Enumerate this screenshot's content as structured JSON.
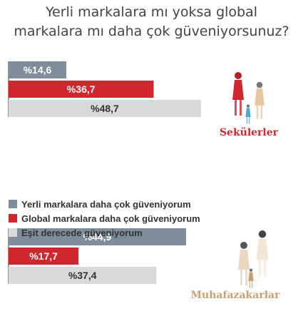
{
  "title_lines": [
    "Yerli markalara mı yoksa global",
    "markalara mı daha çok güveniyorsunuz?"
  ],
  "colors": {
    "yerli": "#7f8c99",
    "global": "#d0272e",
    "esit": "#d9d9d9",
    "text": "#333333",
    "caption": "#d0272e",
    "caption_muted": "#c8a070"
  },
  "chart_data": [
    {
      "type": "bar",
      "group": "Sekülerler",
      "categories": [
        "Yerli markalara daha çok güveniyorum",
        "Global markalara daha çok güveniyorum",
        "Eşit derecede güveniyorum"
      ],
      "values": [
        14.6,
        36.7,
        48.7
      ],
      "labels": [
        "%14,6",
        "%36,7",
        "%48,7"
      ],
      "icon": "secular-family-icon"
    },
    {
      "type": "bar",
      "group": "Muhafazakarlar",
      "categories": [
        "Yerli markalara daha çok güveniyorum",
        "Global markalara daha çok güveniyorum",
        "Eşit derecede güveniyorum"
      ],
      "values": [
        44.9,
        17.7,
        37.4
      ],
      "labels": [
        "%44,9",
        "%17,7",
        "%37,4"
      ],
      "icon": "conservative-family-icon"
    }
  ],
  "legend": [
    {
      "label": "Yerli markalara daha çok güveniyorum",
      "color_key": "yerli"
    },
    {
      "label": "Global markalara daha çok güveniyorum",
      "color_key": "global"
    },
    {
      "label": "Eşit derecede güveniyorum",
      "color_key": "esit"
    }
  ]
}
